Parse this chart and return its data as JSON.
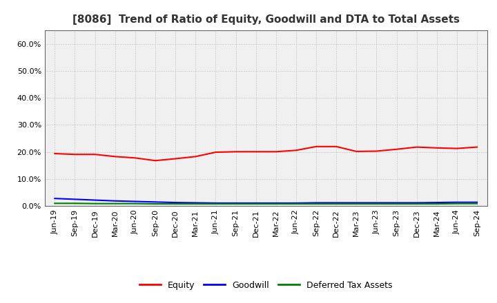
{
  "title": "[8086]  Trend of Ratio of Equity, Goodwill and DTA to Total Assets",
  "x_labels": [
    "Jun-19",
    "Sep-19",
    "Dec-19",
    "Mar-20",
    "Jun-20",
    "Sep-20",
    "Dec-20",
    "Mar-21",
    "Jun-21",
    "Sep-21",
    "Dec-21",
    "Mar-22",
    "Jun-22",
    "Sep-22",
    "Dec-22",
    "Mar-23",
    "Jun-23",
    "Sep-23",
    "Dec-23",
    "Mar-24",
    "Jun-24",
    "Sep-24"
  ],
  "equity": [
    0.194,
    0.191,
    0.191,
    0.183,
    0.178,
    0.168,
    0.175,
    0.183,
    0.199,
    0.201,
    0.201,
    0.201,
    0.206,
    0.22,
    0.22,
    0.202,
    0.203,
    0.21,
    0.218,
    0.215,
    0.213,
    0.218
  ],
  "goodwill": [
    0.028,
    0.025,
    0.022,
    0.019,
    0.017,
    0.015,
    0.013,
    0.012,
    0.011,
    0.011,
    0.011,
    0.011,
    0.011,
    0.012,
    0.012,
    0.012,
    0.012,
    0.012,
    0.012,
    0.013,
    0.014,
    0.014
  ],
  "dta": [
    0.01,
    0.01,
    0.009,
    0.009,
    0.009,
    0.008,
    0.008,
    0.008,
    0.008,
    0.008,
    0.008,
    0.008,
    0.008,
    0.008,
    0.008,
    0.008,
    0.008,
    0.008,
    0.008,
    0.008,
    0.009,
    0.009
  ],
  "equity_color": "#ff0000",
  "goodwill_color": "#0000ff",
  "dta_color": "#008000",
  "ylim": [
    0.0,
    0.65
  ],
  "yticks": [
    0.0,
    0.1,
    0.2,
    0.3,
    0.4,
    0.5,
    0.6
  ],
  "background_color": "#ffffff",
  "plot_bg_color": "#f0f0f0",
  "grid_color": "#bbbbbb",
  "title_fontsize": 11,
  "tick_fontsize": 8,
  "legend_labels": [
    "Equity",
    "Goodwill",
    "Deferred Tax Assets"
  ]
}
